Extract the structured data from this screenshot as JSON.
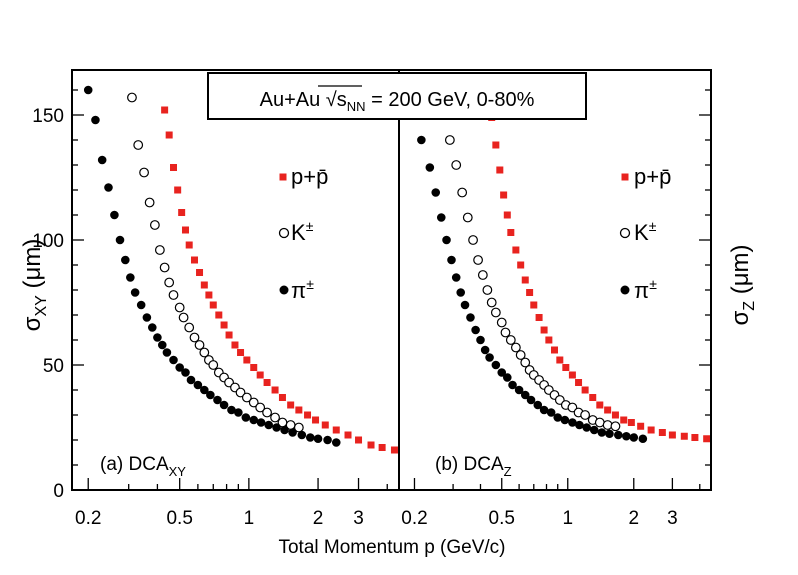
{
  "header": {
    "label_prefix": "Au+Au ",
    "sqrt_symbol": "√",
    "energy_var": "s",
    "energy_sub": "NN",
    "label_suffix": " = 200 GeV, 0-80%"
  },
  "colors": {
    "proton": "#e8231f",
    "axis": "#000000"
  },
  "axes": {
    "xlabel": "Total Momentum p (GeV/c)",
    "ylabel_left": {
      "sym": "σ",
      "sub": "XY",
      "unit": " (μm)"
    },
    "ylabel_right": {
      "sym": "σ",
      "sub": "Z",
      "unit": " (μm)"
    },
    "x_scale": "log",
    "xlim_left": [
      0.17,
      4.5
    ],
    "xlim_right": [
      0.17,
      4.5
    ],
    "ylim": [
      0,
      168
    ],
    "y_ticks": [
      0,
      50,
      100,
      150
    ],
    "x_ticks": [
      0.2,
      0.5,
      1,
      2,
      3
    ],
    "x_ticklabels": [
      "0.2",
      "0.5",
      "1",
      "2",
      "3"
    ]
  },
  "legend": {
    "proton": "p+p̄",
    "kaon": "K",
    "kaon_sup": "±",
    "pion": "π",
    "pion_sup": "±"
  },
  "chart_data": [
    {
      "type": "scatter",
      "panel": "(a) DCA_XY",
      "label_main": "(a) DCA",
      "label_sub": "XY",
      "xlabel": "Total Momentum p (GeV/c)",
      "ylabel": "σ_XY (μm)",
      "x_scale": "log",
      "xlim": [
        0.17,
        4.5
      ],
      "ylim": [
        0,
        168
      ],
      "series": [
        {
          "name": "p+p̄",
          "marker": "filled-square",
          "color": "#e8231f",
          "points": [
            [
              0.43,
              152
            ],
            [
              0.45,
              142
            ],
            [
              0.47,
              129
            ],
            [
              0.49,
              120
            ],
            [
              0.51,
              111
            ],
            [
              0.53,
              104
            ],
            [
              0.55,
              98
            ],
            [
              0.58,
              92
            ],
            [
              0.61,
              87
            ],
            [
              0.64,
              82
            ],
            [
              0.67,
              78
            ],
            [
              0.7,
              74
            ],
            [
              0.74,
              70
            ],
            [
              0.78,
              66
            ],
            [
              0.82,
              62
            ],
            [
              0.87,
              58
            ],
            [
              0.92,
              55
            ],
            [
              0.98,
              52
            ],
            [
              1.05,
              49
            ],
            [
              1.12,
              46
            ],
            [
              1.2,
              43
            ],
            [
              1.3,
              40
            ],
            [
              1.4,
              37
            ],
            [
              1.52,
              34
            ],
            [
              1.65,
              32
            ],
            [
              1.8,
              30
            ],
            [
              1.95,
              28
            ],
            [
              2.15,
              26
            ],
            [
              2.4,
              24
            ],
            [
              2.7,
              22
            ],
            [
              3.0,
              20
            ],
            [
              3.4,
              18
            ],
            [
              3.8,
              17
            ],
            [
              4.3,
              16
            ]
          ]
        },
        {
          "name": "K±",
          "marker": "open-circle",
          "color": "#000000",
          "points": [
            [
              0.31,
              157
            ],
            [
              0.33,
              138
            ],
            [
              0.35,
              127
            ],
            [
              0.37,
              115
            ],
            [
              0.39,
              106
            ],
            [
              0.41,
              96
            ],
            [
              0.43,
              89
            ],
            [
              0.45,
              83
            ],
            [
              0.47,
              78
            ],
            [
              0.5,
              73
            ],
            [
              0.52,
              69
            ],
            [
              0.55,
              65
            ],
            [
              0.58,
              61
            ],
            [
              0.61,
              58
            ],
            [
              0.64,
              55
            ],
            [
              0.67,
              52
            ],
            [
              0.7,
              50
            ],
            [
              0.74,
              47
            ],
            [
              0.78,
              45
            ],
            [
              0.82,
              43
            ],
            [
              0.87,
              41
            ],
            [
              0.92,
              39
            ],
            [
              0.98,
              37
            ],
            [
              1.05,
              35
            ],
            [
              1.12,
              33
            ],
            [
              1.2,
              31
            ],
            [
              1.3,
              29
            ],
            [
              1.4,
              27
            ],
            [
              1.52,
              26
            ],
            [
              1.65,
              25
            ]
          ]
        },
        {
          "name": "π±",
          "marker": "filled-circle",
          "color": "#000000",
          "points": [
            [
              0.2,
              160
            ],
            [
              0.215,
              148
            ],
            [
              0.23,
              132
            ],
            [
              0.245,
              121
            ],
            [
              0.26,
              110
            ],
            [
              0.275,
              100
            ],
            [
              0.29,
              92
            ],
            [
              0.305,
              85
            ],
            [
              0.32,
              79
            ],
            [
              0.34,
              74
            ],
            [
              0.36,
              69
            ],
            [
              0.38,
              65
            ],
            [
              0.4,
              61
            ],
            [
              0.42,
              58
            ],
            [
              0.44,
              55
            ],
            [
              0.47,
              52
            ],
            [
              0.5,
              49
            ],
            [
              0.53,
              47
            ],
            [
              0.56,
              44
            ],
            [
              0.6,
              42
            ],
            [
              0.64,
              40
            ],
            [
              0.68,
              38
            ],
            [
              0.73,
              36
            ],
            [
              0.78,
              34
            ],
            [
              0.84,
              32
            ],
            [
              0.9,
              31
            ],
            [
              0.97,
              29
            ],
            [
              1.05,
              28
            ],
            [
              1.13,
              27
            ],
            [
              1.22,
              26
            ],
            [
              1.32,
              25
            ],
            [
              1.43,
              24
            ],
            [
              1.55,
              23
            ],
            [
              1.7,
              22
            ],
            [
              1.85,
              21
            ],
            [
              2.0,
              20.5
            ],
            [
              2.2,
              20
            ],
            [
              2.4,
              19
            ]
          ]
        }
      ]
    },
    {
      "type": "scatter",
      "panel": "(b) DCA_Z",
      "label_main": "(b) DCA",
      "label_sub": "Z",
      "xlabel": "Total Momentum p (GeV/c)",
      "ylabel": "σ_Z (μm)",
      "x_scale": "log",
      "xlim": [
        0.17,
        4.5
      ],
      "ylim": [
        0,
        168
      ],
      "series": [
        {
          "name": "p+p̄",
          "marker": "filled-square",
          "color": "#e8231f",
          "points": [
            [
              0.45,
              149
            ],
            [
              0.47,
              138
            ],
            [
              0.49,
              128
            ],
            [
              0.51,
              118
            ],
            [
              0.53,
              110
            ],
            [
              0.55,
              103
            ],
            [
              0.58,
              96
            ],
            [
              0.61,
              90
            ],
            [
              0.64,
              84
            ],
            [
              0.67,
              79
            ],
            [
              0.7,
              74
            ],
            [
              0.74,
              69
            ],
            [
              0.78,
              64
            ],
            [
              0.82,
              60
            ],
            [
              0.87,
              56
            ],
            [
              0.92,
              52
            ],
            [
              0.98,
              49
            ],
            [
              1.05,
              46
            ],
            [
              1.12,
              43
            ],
            [
              1.2,
              40
            ],
            [
              1.3,
              37
            ],
            [
              1.4,
              34
            ],
            [
              1.52,
              32
            ],
            [
              1.65,
              30
            ],
            [
              1.8,
              28
            ],
            [
              1.95,
              27
            ],
            [
              2.15,
              25.5
            ],
            [
              2.4,
              24
            ],
            [
              2.7,
              23
            ],
            [
              3.0,
              22
            ],
            [
              3.4,
              21.5
            ],
            [
              3.8,
              21
            ],
            [
              4.3,
              20.5
            ]
          ]
        },
        {
          "name": "K±",
          "marker": "open-circle",
          "color": "#000000",
          "points": [
            [
              0.29,
              140
            ],
            [
              0.31,
              130
            ],
            [
              0.33,
              119
            ],
            [
              0.35,
              109
            ],
            [
              0.37,
              100
            ],
            [
              0.39,
              92
            ],
            [
              0.41,
              86
            ],
            [
              0.43,
              80
            ],
            [
              0.45,
              75
            ],
            [
              0.47,
              71
            ],
            [
              0.5,
              67
            ],
            [
              0.52,
              63
            ],
            [
              0.55,
              60
            ],
            [
              0.58,
              57
            ],
            [
              0.61,
              54
            ],
            [
              0.64,
              51
            ],
            [
              0.67,
              48
            ],
            [
              0.7,
              46
            ],
            [
              0.74,
              44
            ],
            [
              0.78,
              42
            ],
            [
              0.82,
              40
            ],
            [
              0.87,
              38
            ],
            [
              0.92,
              36
            ],
            [
              0.98,
              34
            ],
            [
              1.05,
              33
            ],
            [
              1.12,
              31
            ],
            [
              1.2,
              30
            ],
            [
              1.3,
              28
            ],
            [
              1.4,
              27
            ],
            [
              1.52,
              26
            ],
            [
              1.65,
              25.5
            ]
          ]
        },
        {
          "name": "π±",
          "marker": "filled-circle",
          "color": "#000000",
          "points": [
            [
              0.215,
              140
            ],
            [
              0.235,
              129
            ],
            [
              0.25,
              119
            ],
            [
              0.265,
              109
            ],
            [
              0.28,
              100
            ],
            [
              0.295,
              92
            ],
            [
              0.31,
              85
            ],
            [
              0.325,
              79
            ],
            [
              0.34,
              74
            ],
            [
              0.36,
              69
            ],
            [
              0.38,
              64
            ],
            [
              0.4,
              60
            ],
            [
              0.42,
              56
            ],
            [
              0.44,
              53
            ],
            [
              0.47,
              50
            ],
            [
              0.5,
              47
            ],
            [
              0.53,
              45
            ],
            [
              0.56,
              42
            ],
            [
              0.6,
              40
            ],
            [
              0.64,
              38
            ],
            [
              0.68,
              36
            ],
            [
              0.73,
              34
            ],
            [
              0.78,
              32
            ],
            [
              0.84,
              31
            ],
            [
              0.9,
              29
            ],
            [
              0.97,
              28
            ],
            [
              1.05,
              27
            ],
            [
              1.13,
              26
            ],
            [
              1.22,
              25
            ],
            [
              1.32,
              24
            ],
            [
              1.43,
              23
            ],
            [
              1.55,
              22.5
            ],
            [
              1.7,
              22
            ],
            [
              1.85,
              21.5
            ],
            [
              2.0,
              21
            ],
            [
              2.2,
              20.5
            ]
          ]
        }
      ]
    }
  ]
}
